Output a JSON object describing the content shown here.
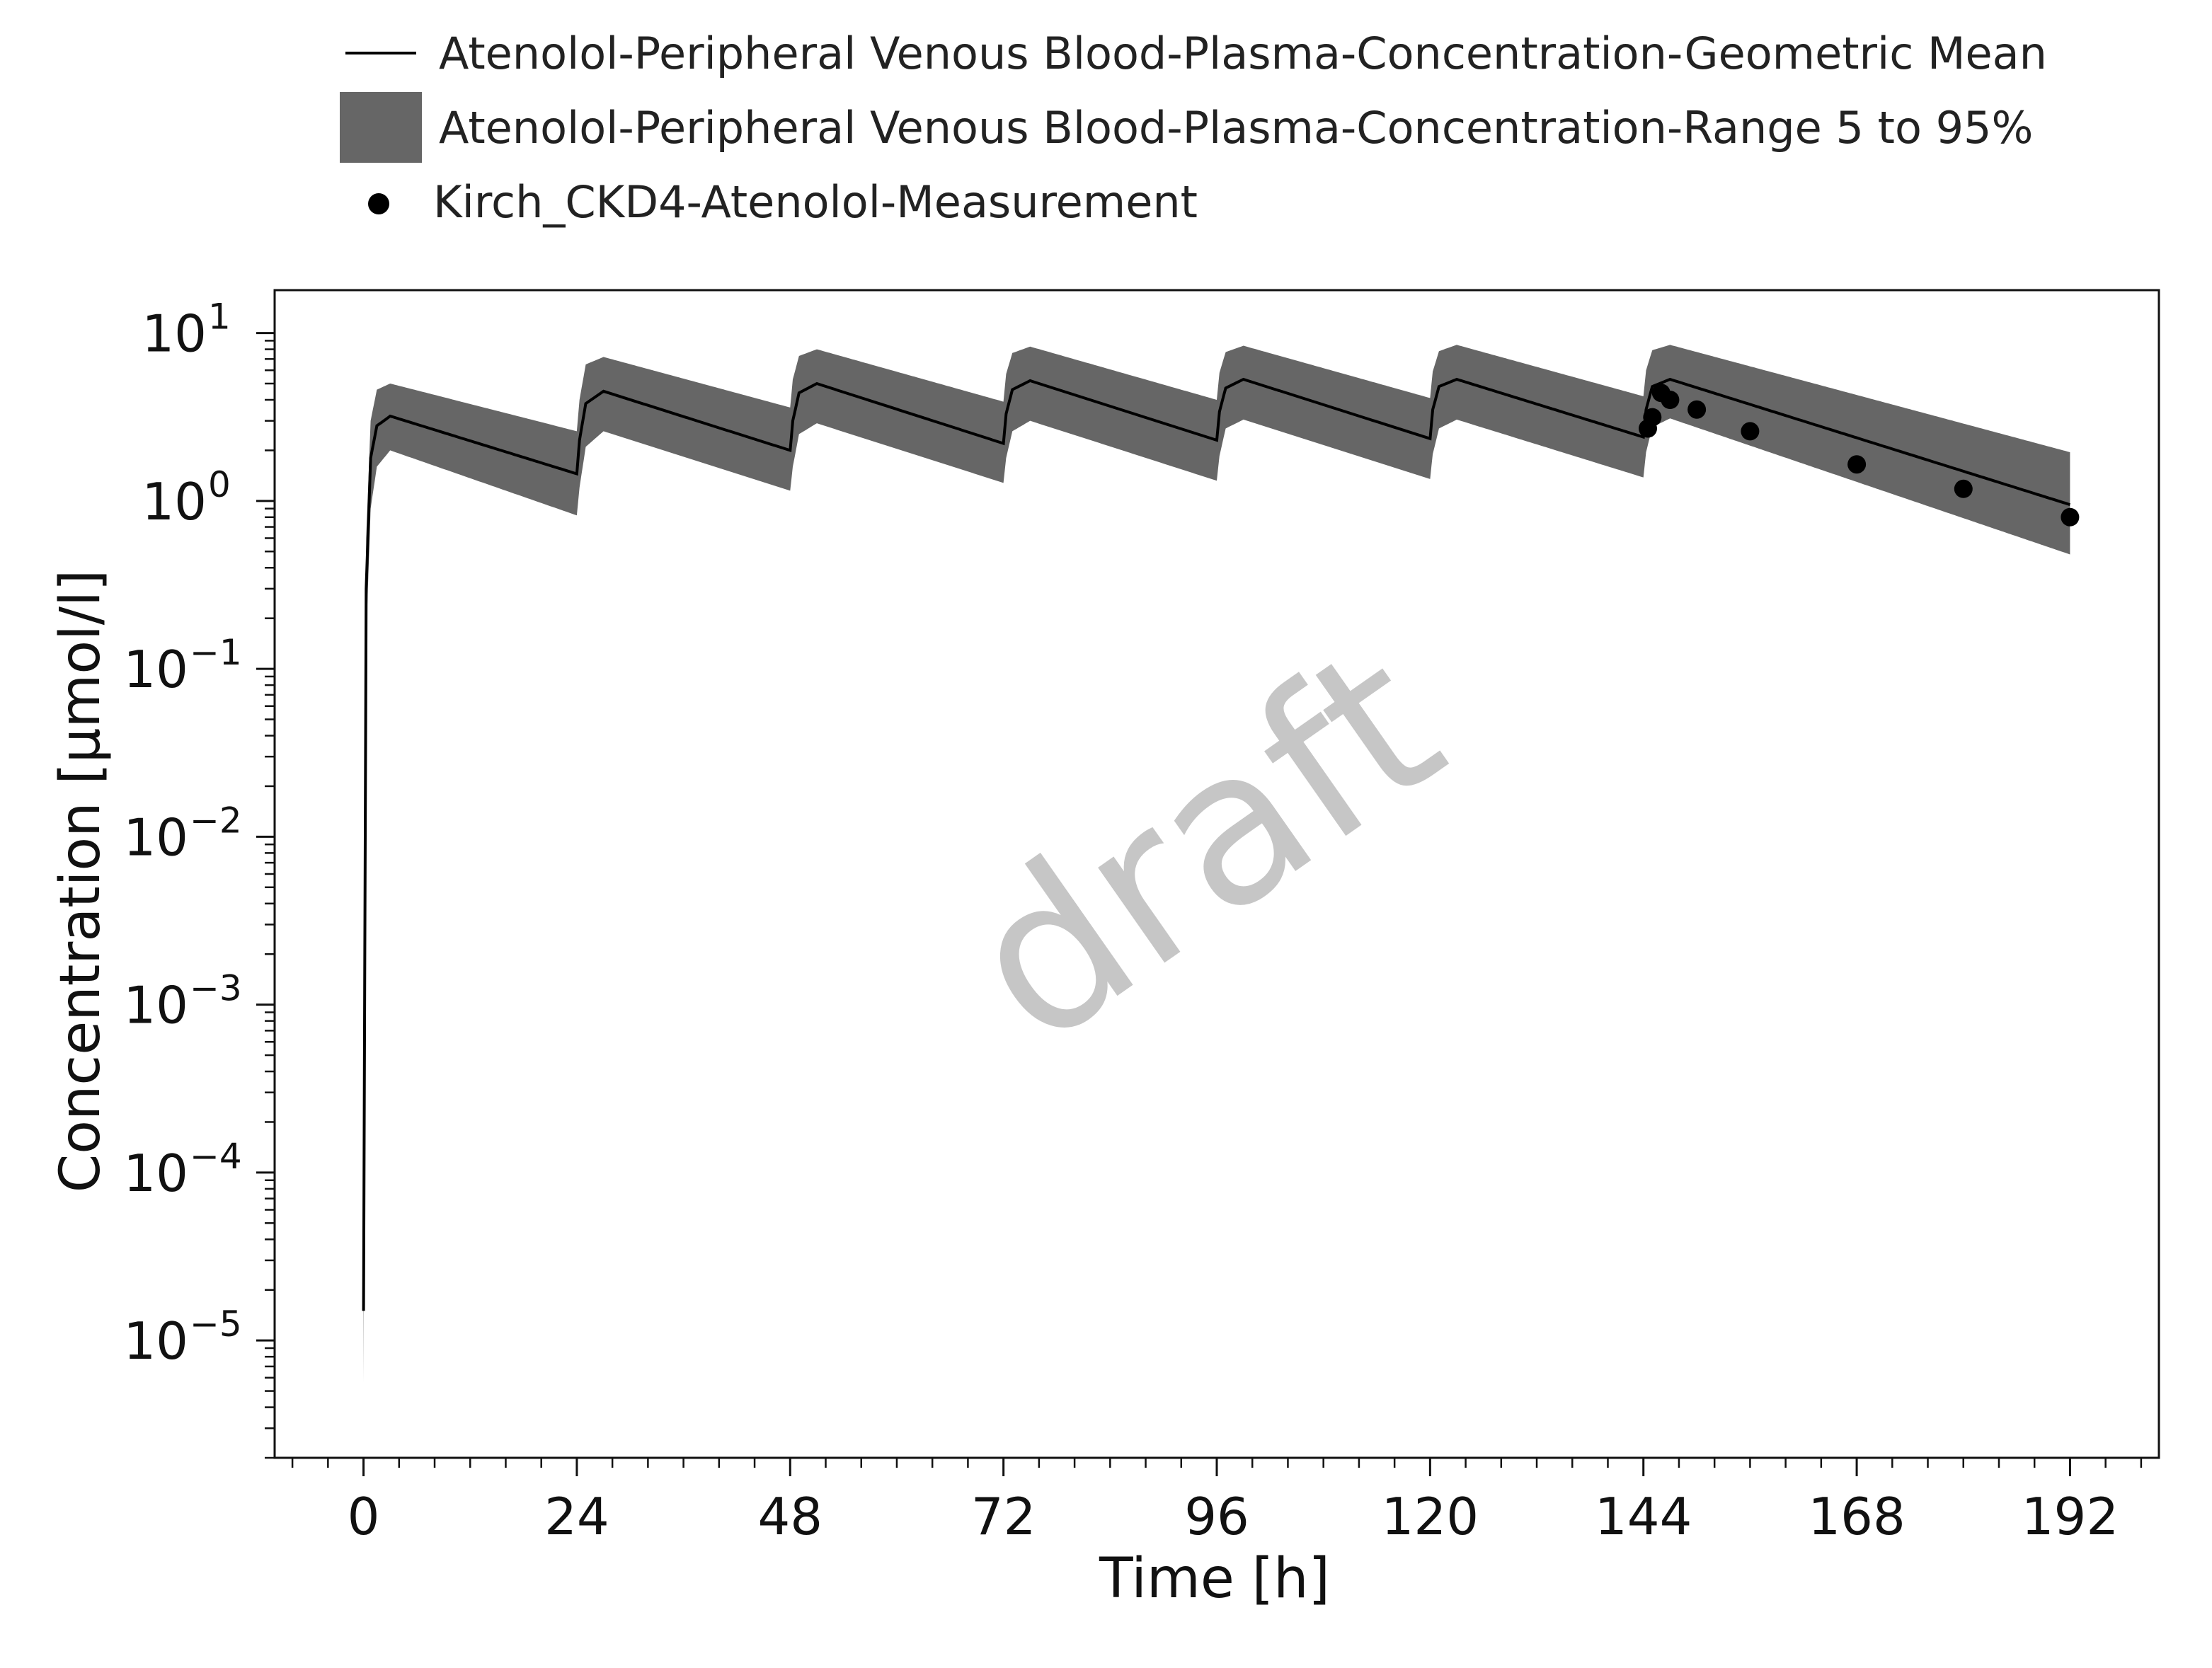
{
  "chart_data": {
    "type": "line",
    "title": "",
    "xlabel": "Time [h]",
    "ylabel": "Concentration [µmol/l]",
    "xlim": [
      -10,
      202
    ],
    "ylim": [
      2e-06,
      18
    ],
    "y_scale": "log",
    "grid": false,
    "legend_position": "top",
    "watermark": "draft",
    "x_ticks": [
      "0",
      "24",
      "48",
      "72",
      "96",
      "120",
      "144",
      "168",
      "192"
    ],
    "y_tick_base": "10",
    "y_tick_exponents": [
      "1",
      "0",
      "−1",
      "−2",
      "−3",
      "−4",
      "−5"
    ],
    "dosing": {
      "dose_times": [
        0,
        24,
        48,
        72,
        96,
        120,
        144
      ],
      "end_time": 192
    },
    "series": [
      {
        "name": "Atenolol-Peripheral Venous Blood-Plasma-Concentration-Geometric Mean",
        "style": "line",
        "color": "#000000",
        "x": [
          0,
          0.3,
          0.8,
          1.5,
          3,
          24,
          24.3,
          25,
          27,
          48,
          48.3,
          49,
          51,
          72,
          72.3,
          73,
          75,
          96,
          96.3,
          97,
          99,
          120,
          120.3,
          121,
          123,
          144,
          144.3,
          145,
          147,
          192
        ],
        "values": [
          1.5e-05,
          0.3,
          1.8,
          2.8,
          3.2,
          1.45,
          2.3,
          3.8,
          4.5,
          2.0,
          3.0,
          4.4,
          5.0,
          2.2,
          3.3,
          4.6,
          5.2,
          2.3,
          3.4,
          4.7,
          5.3,
          2.35,
          3.5,
          4.8,
          5.3,
          2.4,
          3.5,
          4.8,
          5.3,
          0.95
        ]
      },
      {
        "name": "Atenolol-Peripheral Venous Blood-Plasma-Concentration-Range 5 to 95%",
        "style": "band",
        "color": "#666666",
        "x": [
          0,
          0.3,
          0.8,
          1.5,
          3,
          24,
          24.3,
          25,
          27,
          48,
          48.3,
          49,
          51,
          72,
          72.3,
          73,
          75,
          96,
          96.3,
          97,
          99,
          120,
          120.3,
          121,
          123,
          144,
          144.3,
          145,
          147,
          192
        ],
        "lower": [
          5.5e-06,
          0.15,
          0.9,
          1.6,
          2.0,
          0.82,
          1.2,
          2.1,
          2.6,
          1.15,
          1.6,
          2.5,
          2.9,
          1.28,
          1.8,
          2.6,
          3.0,
          1.32,
          1.85,
          2.7,
          3.05,
          1.35,
          1.9,
          2.7,
          3.05,
          1.38,
          1.95,
          2.75,
          3.1,
          0.48
        ],
        "upper": [
          2e-05,
          0.6,
          3.0,
          4.6,
          5.0,
          2.6,
          4.0,
          6.5,
          7.2,
          3.6,
          5.3,
          7.3,
          8.0,
          3.9,
          5.7,
          7.6,
          8.3,
          4.0,
          5.8,
          7.7,
          8.4,
          4.1,
          5.9,
          7.8,
          8.5,
          4.2,
          6.0,
          7.9,
          8.5,
          1.95
        ]
      },
      {
        "name": "Kirch_CKD4-Atenolol-Measurement",
        "style": "scatter",
        "color": "#000000",
        "x": [
          144.5,
          145.0,
          146.0,
          147.0,
          150.0,
          156.0,
          168.0,
          180.0,
          192.0
        ],
        "values": [
          2.7,
          3.15,
          4.4,
          4.0,
          3.5,
          2.6,
          1.65,
          1.18,
          0.8
        ]
      }
    ]
  }
}
